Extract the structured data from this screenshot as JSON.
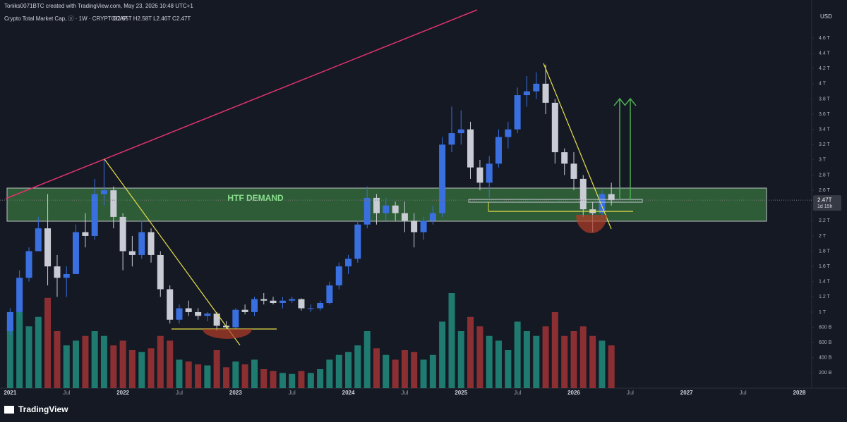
{
  "header": {
    "credit": "Toniks0071BTC created with TradingView.com, May 23, 2026 10:48 UTC+1",
    "symbol": "Crypto Total Market Cap, ⓢ · 1W · CRYPTOCAP",
    "ohlc": "O2.55T H2.58T L2.46T C2.47T"
  },
  "chart_data": {
    "type": "candlestick",
    "currency": "USD",
    "x": [
      2021.0,
      2021.083,
      2021.167,
      2021.25,
      2021.333,
      2021.417,
      2021.5,
      2021.583,
      2021.667,
      2021.75,
      2021.833,
      2021.917,
      2022.0,
      2022.083,
      2022.167,
      2022.25,
      2022.333,
      2022.417,
      2022.5,
      2022.583,
      2022.667,
      2022.75,
      2022.833,
      2022.917,
      2023.0,
      2023.083,
      2023.167,
      2023.25,
      2023.333,
      2023.417,
      2023.5,
      2023.583,
      2023.667,
      2023.75,
      2023.833,
      2023.917,
      2024.0,
      2024.083,
      2024.167,
      2024.25,
      2024.333,
      2024.417,
      2024.5,
      2024.583,
      2024.667,
      2024.75,
      2024.833,
      2024.917,
      2025.0,
      2025.083,
      2025.167,
      2025.25,
      2025.333,
      2025.417,
      2025.5,
      2025.583,
      2025.667,
      2025.75,
      2025.833,
      2025.917,
      2026.0,
      2026.083,
      2026.167,
      2026.25,
      2026.333
    ],
    "open": [
      0.75,
      1.0,
      1.45,
      1.8,
      2.1,
      1.6,
      1.45,
      1.5,
      2.05,
      2.0,
      2.55,
      2.6,
      2.25,
      1.8,
      1.75,
      2.05,
      1.75,
      1.3,
      0.9,
      1.05,
      1.0,
      0.95,
      0.98,
      0.82,
      0.8,
      1.03,
      1.0,
      1.17,
      1.15,
      1.12,
      1.15,
      1.17,
      1.05,
      1.05,
      1.12,
      1.35,
      1.6,
      1.7,
      2.15,
      2.5,
      2.3,
      2.4,
      2.3,
      2.2,
      2.05,
      2.2,
      2.3,
      3.2,
      3.35,
      3.4,
      2.9,
      2.7,
      2.95,
      3.3,
      3.4,
      3.85,
      3.9,
      4.0,
      3.75,
      3.1,
      2.95,
      2.75,
      2.35,
      2.3,
      2.55
    ],
    "high": [
      1.05,
      1.55,
      1.85,
      2.25,
      2.55,
      1.75,
      1.6,
      2.15,
      2.3,
      2.75,
      3.0,
      2.65,
      2.3,
      2.0,
      2.2,
      2.1,
      1.8,
      1.35,
      1.1,
      1.15,
      1.05,
      1.0,
      1.0,
      0.88,
      1.05,
      1.1,
      1.2,
      1.25,
      1.2,
      1.2,
      1.2,
      1.18,
      1.1,
      1.15,
      1.4,
      1.65,
      1.75,
      2.2,
      2.65,
      2.55,
      2.5,
      2.45,
      2.45,
      2.3,
      2.25,
      2.4,
      3.3,
      3.7,
      3.65,
      3.5,
      3.0,
      3.05,
      3.4,
      3.5,
      3.95,
      4.1,
      4.15,
      4.25,
      3.8,
      3.15,
      3.1,
      2.8,
      2.45,
      2.6,
      2.7
    ],
    "low": [
      0.7,
      0.95,
      1.4,
      1.8,
      1.35,
      1.2,
      1.2,
      1.5,
      1.85,
      1.95,
      2.4,
      2.1,
      1.55,
      1.6,
      1.7,
      1.65,
      1.2,
      0.85,
      0.85,
      0.95,
      0.9,
      0.88,
      0.75,
      0.78,
      0.78,
      0.97,
      0.95,
      1.1,
      1.1,
      1.05,
      1.12,
      1.02,
      1.0,
      1.02,
      1.1,
      1.3,
      1.5,
      1.65,
      2.1,
      2.15,
      2.2,
      2.2,
      2.05,
      1.85,
      1.95,
      2.15,
      2.25,
      3.1,
      3.2,
      2.75,
      2.6,
      2.5,
      2.9,
      3.15,
      3.35,
      3.7,
      3.8,
      3.6,
      2.95,
      2.8,
      2.6,
      2.25,
      2.05,
      2.25,
      2.4
    ],
    "close": [
      1.0,
      1.45,
      1.8,
      2.1,
      1.6,
      1.45,
      1.5,
      2.05,
      2.0,
      2.55,
      2.6,
      2.25,
      1.8,
      1.75,
      2.05,
      1.75,
      1.3,
      0.9,
      1.05,
      1.0,
      0.95,
      0.98,
      0.82,
      0.8,
      1.03,
      1.0,
      1.17,
      1.15,
      1.12,
      1.15,
      1.17,
      1.05,
      1.05,
      1.12,
      1.35,
      1.6,
      1.7,
      2.15,
      2.5,
      2.3,
      2.4,
      2.3,
      2.2,
      2.05,
      2.2,
      2.3,
      3.2,
      3.35,
      3.4,
      2.9,
      2.7,
      2.95,
      3.3,
      3.4,
      3.85,
      3.9,
      4.0,
      3.75,
      3.1,
      2.95,
      2.75,
      2.35,
      2.3,
      2.55,
      2.47
    ],
    "volume": [
      70,
      80,
      65,
      75,
      95,
      60,
      45,
      50,
      55,
      60,
      55,
      45,
      50,
      40,
      38,
      42,
      55,
      50,
      30,
      28,
      25,
      24,
      40,
      22,
      28,
      25,
      30,
      20,
      18,
      16,
      15,
      18,
      16,
      20,
      30,
      35,
      38,
      45,
      60,
      42,
      35,
      30,
      40,
      38,
      30,
      35,
      70,
      100,
      60,
      75,
      65,
      55,
      50,
      40,
      70,
      60,
      55,
      65,
      80,
      55,
      60,
      65,
      55,
      50,
      45
    ],
    "ylim": [
      0,
      5.1
    ],
    "yticks": [
      {
        "value": 0.2,
        "label": "200 B"
      },
      {
        "value": 0.4,
        "label": "400 B"
      },
      {
        "value": 0.6,
        "label": "600 B"
      },
      {
        "value": 0.8,
        "label": "800 B"
      },
      {
        "value": 1,
        "label": "1 T"
      },
      {
        "value": 1.2,
        "label": "1.2 T"
      },
      {
        "value": 1.4,
        "label": "1.4 T"
      },
      {
        "value": 1.6,
        "label": "1.6 T"
      },
      {
        "value": 1.8,
        "label": "1.8 T"
      },
      {
        "value": 2,
        "label": "2 T"
      },
      {
        "value": 2.2,
        "label": "2.2 T"
      },
      {
        "value": 2.6,
        "label": "2.6 T"
      },
      {
        "value": 2.8,
        "label": "2.8 T"
      },
      {
        "value": 3,
        "label": "3 T"
      },
      {
        "value": 3.2,
        "label": "3.2 T"
      },
      {
        "value": 3.4,
        "label": "3.4 T"
      },
      {
        "value": 3.6,
        "label": "3.6 T"
      },
      {
        "value": 3.8,
        "label": "3.8 T"
      },
      {
        "value": 4,
        "label": "4 T"
      },
      {
        "value": 4.2,
        "label": "4.2 T"
      },
      {
        "value": 4.4,
        "label": "4.4 T"
      },
      {
        "value": 4.6,
        "label": "4.6 T"
      }
    ],
    "xlim": [
      2020.91,
      2028.11
    ],
    "xticks": [
      {
        "value": 2021,
        "label": "2021"
      },
      {
        "value": 2021.5,
        "label": "Jul"
      },
      {
        "value": 2022,
        "label": "2022"
      },
      {
        "value": 2022.5,
        "label": "Jul"
      },
      {
        "value": 2023,
        "label": "2023"
      },
      {
        "value": 2023.5,
        "label": "Jul"
      },
      {
        "value": 2024,
        "label": "2024"
      },
      {
        "value": 2024.5,
        "label": "Jul"
      },
      {
        "value": 2025,
        "label": "2025"
      },
      {
        "value": 2025.5,
        "label": "Jul"
      },
      {
        "value": 2026,
        "label": "2026"
      },
      {
        "value": 2026.5,
        "label": "Jul"
      },
      {
        "value": 2027,
        "label": "2027"
      },
      {
        "value": 2027.5,
        "label": "Jul"
      },
      {
        "value": 2028,
        "label": "2028"
      }
    ],
    "grid": false,
    "up_color": "#3a6fe0",
    "down_color": "#c9ccd4",
    "volume_up_color": "#1f7a70",
    "volume_down_color": "#8c2f33",
    "zone_label": "HTF DEMAND",
    "last_price": {
      "value": 2.47,
      "label": "2.47T"
    },
    "countdown": "1d 15h"
  },
  "footer": {
    "logo": "TradingView"
  }
}
